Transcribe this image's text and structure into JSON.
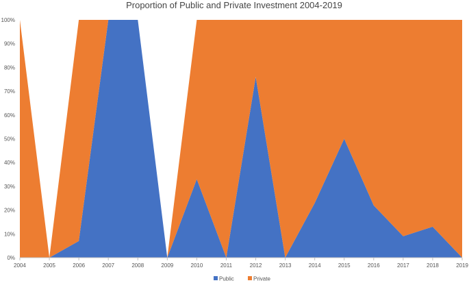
{
  "chart_data": {
    "type": "area",
    "stacked": true,
    "title": "Proportion of Public and Private Investment 2004-2019",
    "xlabel": "",
    "ylabel": "",
    "x": [
      "2004",
      "2005",
      "2006",
      "2007",
      "2008",
      "2009",
      "2010",
      "2011",
      "2012",
      "2013",
      "2014",
      "2015",
      "2016",
      "2017",
      "2018",
      "2019"
    ],
    "series": [
      {
        "name": "Public",
        "color": "#4472C4",
        "values": [
          0,
          0,
          7,
          100,
          100,
          0,
          33,
          0,
          76,
          0,
          23,
          50,
          22,
          9,
          13,
          0
        ]
      },
      {
        "name": "Private",
        "color": "#ED7D31",
        "values": [
          100,
          0,
          93,
          0,
          0,
          0,
          67,
          100,
          24,
          100,
          77,
          50,
          78,
          91,
          87,
          100
        ]
      }
    ],
    "y_ticks": [
      "0%",
      "10%",
      "20%",
      "30%",
      "40%",
      "50%",
      "60%",
      "70%",
      "80%",
      "90%",
      "100%"
    ],
    "ylim": [
      0,
      100
    ],
    "grid": false,
    "legend_position": "bottom"
  }
}
